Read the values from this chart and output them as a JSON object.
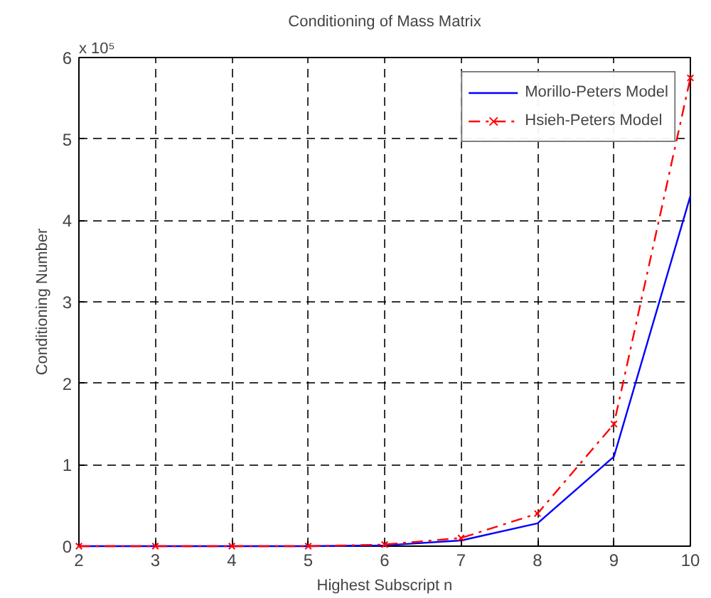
{
  "chart_data": {
    "type": "line",
    "title": "Conditioning of Mass Matrix",
    "xlabel": "Highest Subscript n",
    "ylabel": "Conditioning Number",
    "x": [
      2,
      3,
      4,
      5,
      6,
      7,
      8,
      9,
      10
    ],
    "series": [
      {
        "name": "Morillo-Peters Model",
        "color": "#0000ff",
        "marker": "none",
        "line_style": "solid",
        "values": [
          0,
          0,
          0,
          0,
          0.01,
          0.07,
          0.28,
          1.1,
          4.3
        ]
      },
      {
        "name": "Hsieh-Peters Model",
        "color": "#ff0000",
        "marker": "cross",
        "line_style": "dashed",
        "values": [
          0,
          0,
          0,
          0,
          0.02,
          0.1,
          0.4,
          1.5,
          5.75
        ]
      }
    ],
    "xlim": [
      2,
      10
    ],
    "ylim": [
      0,
      6
    ],
    "xticks": [
      2,
      3,
      4,
      5,
      6,
      7,
      8,
      9,
      10
    ],
    "yticks": [
      0,
      1,
      2,
      3,
      4,
      5,
      6
    ],
    "annotations": [
      "x 10⁵"
    ],
    "grid": true,
    "legend": "top right"
  }
}
